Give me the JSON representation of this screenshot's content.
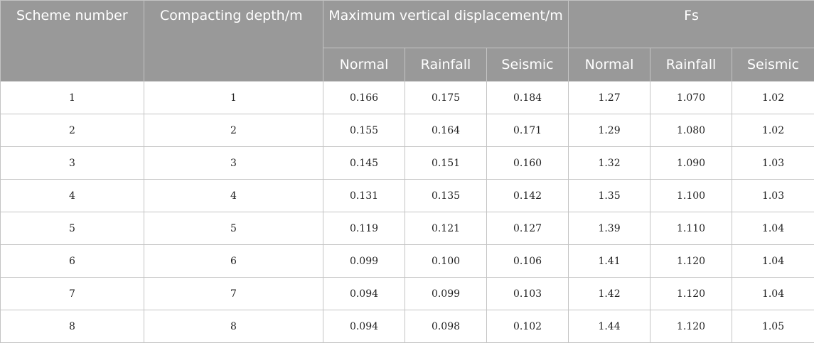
{
  "table": {
    "headers": {
      "scheme_number": "Scheme number",
      "compacting_depth": "Compacting depth/m",
      "max_vertical_displacement": "Maximum vertical displacement/m",
      "fs": "Fs",
      "sub": [
        "Normal",
        "Rainfall",
        "Seismic",
        "Normal",
        "Rainfall",
        "Seismic"
      ]
    },
    "rows": [
      [
        "1",
        "1",
        "0.166",
        "0.175",
        "0.184",
        "1.27",
        "1.070",
        "1.02"
      ],
      [
        "2",
        "2",
        "0.155",
        "0.164",
        "0.171",
        "1.29",
        "1.080",
        "1.02"
      ],
      [
        "3",
        "3",
        "0.145",
        "0.151",
        "0.160",
        "1.32",
        "1.090",
        "1.03"
      ],
      [
        "4",
        "4",
        "0.131",
        "0.135",
        "0.142",
        "1.35",
        "1.100",
        "1.03"
      ],
      [
        "5",
        "5",
        "0.119",
        "0.121",
        "0.127",
        "1.39",
        "1.110",
        "1.04"
      ],
      [
        "6",
        "6",
        "0.099",
        "0.100",
        "0.106",
        "1.41",
        "1.120",
        "1.04"
      ],
      [
        "7",
        "7",
        "0.094",
        "0.099",
        "0.103",
        "1.42",
        "1.120",
        "1.04"
      ],
      [
        "8",
        "8",
        "0.094",
        "0.098",
        "0.102",
        "1.44",
        "1.120",
        "1.05"
      ]
    ]
  }
}
